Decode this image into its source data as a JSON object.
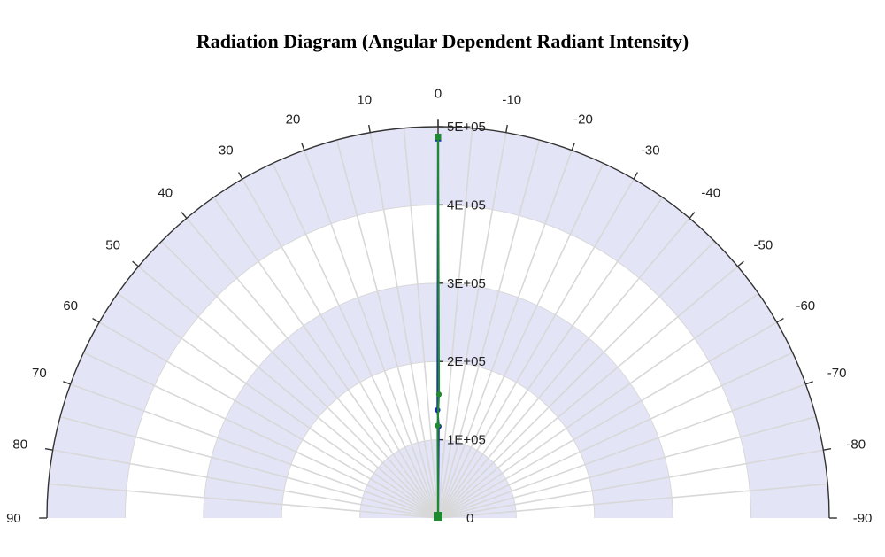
{
  "chart_data": {
    "type": "polar",
    "title": "Radiation Diagram (Angular Dependent Radiant Intensity)",
    "angle_range_deg": [
      -90,
      90
    ],
    "angle_ticks": [
      "90",
      "80",
      "70",
      "60",
      "50",
      "40",
      "30",
      "20",
      "10",
      "0",
      "-10",
      "-20",
      "-30",
      "-40",
      "-50",
      "-60",
      "-70",
      "-80",
      "-90"
    ],
    "radial_range": [
      0,
      500000
    ],
    "radial_ticks": [
      "0",
      "1E+05",
      "2E+05",
      "3E+05",
      "4E+05",
      "5E+05"
    ],
    "grid": true,
    "colors": {
      "band": "#e3e4f6",
      "grid": "#d8d8d8",
      "axis": "#333333",
      "series_blue": "#1a2fb0",
      "series_green": "#1f8a2f"
    },
    "series": [
      {
        "color": "#1a2fb0",
        "points": [
          {
            "angle": 0,
            "r": 485000
          },
          {
            "angle": 0.3,
            "r": 138000
          },
          {
            "angle": -0.4,
            "r": 117000
          },
          {
            "angle": 0,
            "r": 0
          }
        ]
      },
      {
        "color": "#1f8a2f",
        "points": [
          {
            "angle": 0,
            "r": 487000
          },
          {
            "angle": -0.4,
            "r": 158000
          },
          {
            "angle": 0.3,
            "r": 118000
          },
          {
            "angle": 0,
            "r": 0
          }
        ]
      }
    ]
  }
}
